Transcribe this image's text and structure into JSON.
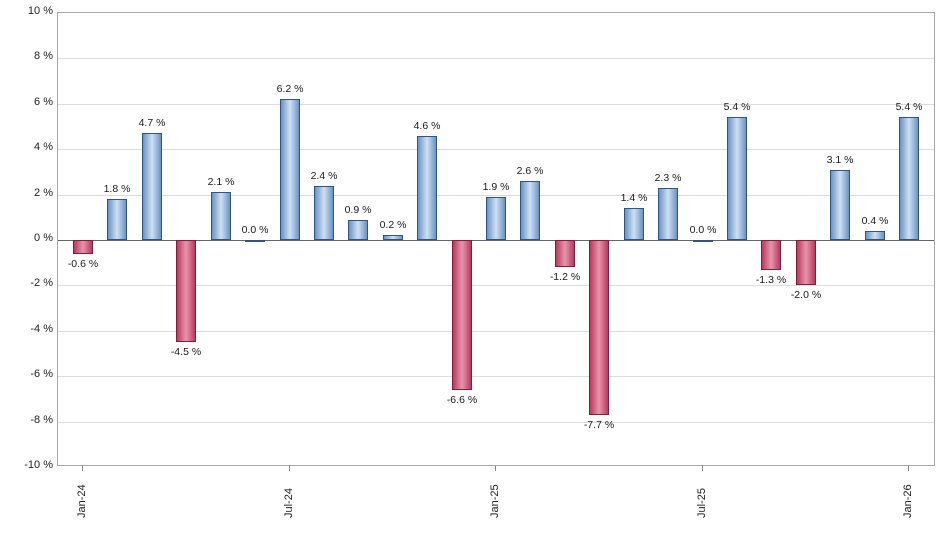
{
  "chart_data": {
    "type": "bar",
    "title": "",
    "xlabel": "",
    "ylabel": "",
    "ylim": [
      -10,
      10
    ],
    "y_tick_step": 2,
    "y_tick_labels": [
      "10 %",
      "8 %",
      "6 %",
      "4 %",
      "2 %",
      "0 %",
      "-2 %",
      "-4 %",
      "-6 %",
      "-8 %",
      "-10 %"
    ],
    "x_tick_labels": [
      "Jan-24",
      "Jul-24",
      "Jan-25",
      "Jul-25",
      "Jan-26"
    ],
    "x_tick_indices": [
      0,
      6,
      12,
      18,
      24
    ],
    "values": [
      -0.6,
      1.8,
      4.7,
      -4.5,
      2.1,
      0.0,
      6.2,
      2.4,
      0.9,
      0.2,
      4.6,
      -6.6,
      1.9,
      2.6,
      -1.2,
      -7.7,
      1.4,
      2.3,
      0.0,
      5.4,
      -1.3,
      -2.0,
      3.1,
      0.4,
      5.4
    ],
    "value_labels": [
      "-0.6 %",
      "1.8 %",
      "4.7 %",
      "-4.5 %",
      "2.1 %",
      "0.0 %",
      "6.2 %",
      "2.4 %",
      "0.9 %",
      "0.2 %",
      "4.6 %",
      "-6.6 %",
      "1.9 %",
      "2.6 %",
      "-1.2 %",
      "-7.7 %",
      "1.4 %",
      "2.3 %",
      "0.0 %",
      "5.4 %",
      "-1.3 %",
      "-2.0 %",
      "3.1 %",
      "0.4 %",
      "5.4 %"
    ],
    "grid": true,
    "legend": false,
    "colors": {
      "positive_fill_dark": "#6a93c4",
      "positive_fill_light": "#cfe0f3",
      "positive_border": "#2f5580",
      "negative_fill_dark": "#b93a5e",
      "negative_fill_light": "#e795ab",
      "negative_border": "#7e1f3d",
      "grid_line": "#dcdcdc",
      "zero_line": "#666666",
      "frame": "#aaaaaa"
    }
  }
}
